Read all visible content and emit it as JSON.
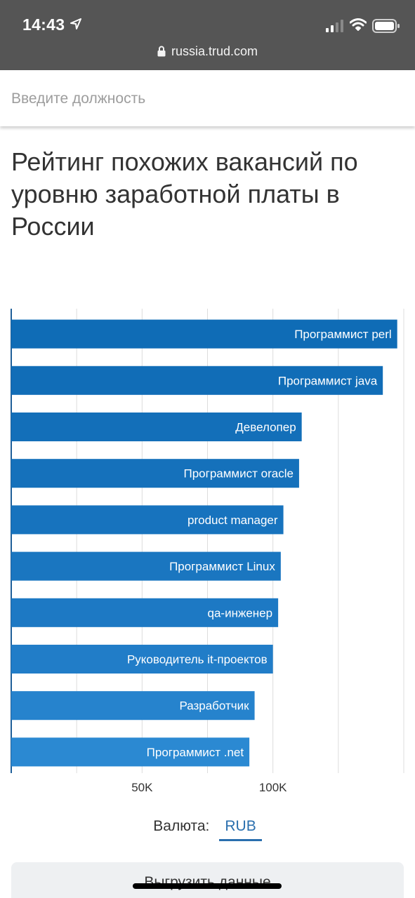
{
  "status_bar": {
    "time": "14:43",
    "url": "russia.trud.com"
  },
  "search": {
    "placeholder": "Введите должность"
  },
  "page": {
    "title": "Рейтинг похожих вакансий по уровню заработной платы в России"
  },
  "chart_data": {
    "type": "bar",
    "orientation": "horizontal",
    "categories": [
      "Программист perl",
      "Программист java",
      "Девелопер",
      "Программист oracle",
      "product manager",
      "Программист Linux",
      "qa-инженер",
      "Руководитель it-проектов",
      "Разработчик",
      "Программист .net"
    ],
    "values": [
      147500,
      142000,
      111000,
      110000,
      104000,
      103000,
      102000,
      100000,
      93000,
      91000
    ],
    "xlim": [
      0,
      150000
    ],
    "x_ticks": [
      {
        "value": 50000,
        "label": "50K"
      },
      {
        "value": 100000,
        "label": "100K"
      }
    ],
    "gridlines_x": [
      25000,
      50000,
      75000,
      100000,
      125000,
      150000
    ],
    "grid": true,
    "label_position": "inside-end",
    "colors": [
      "#0f6cb6",
      "#116db7",
      "#136fb9",
      "#1571bb",
      "#1773be",
      "#1a76c0",
      "#1d79c4",
      "#217dc8",
      "#2683cd",
      "#2b89d2"
    ],
    "label_color": "#ffffff"
  },
  "currency": {
    "label": "Валюта:",
    "value": "RUB"
  },
  "download": {
    "label": "Выгрузить данные"
  }
}
